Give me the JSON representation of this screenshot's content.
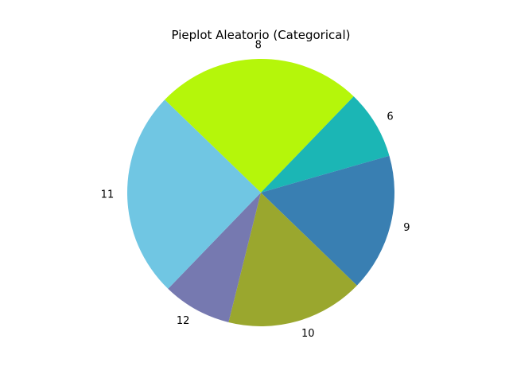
{
  "chart_data": {
    "type": "pie",
    "title": "Pieplot Aleatorio (Categorical)",
    "labels": [
      "8",
      "6",
      "9",
      "10",
      "12",
      "11"
    ],
    "values": [
      3,
      1,
      2,
      2,
      1,
      3
    ],
    "colors": [
      "#b5f60a",
      "#1bb6b5",
      "#397fb2",
      "#9aa72e",
      "#7679b0",
      "#70c6e3"
    ],
    "start_angle_deg": 136,
    "direction": "clockwise"
  }
}
